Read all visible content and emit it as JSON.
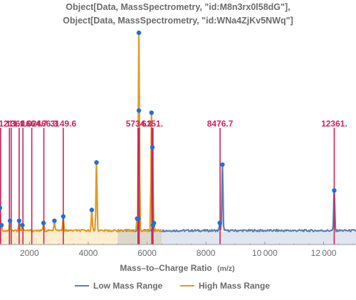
{
  "chart_data": {
    "type": "line",
    "title_lines": [
      "Object[Data, MassSpectrometry, \"id:M8n3rx0l58dG\"],",
      "Object[Data, MassSpectrometry, \"id:WNa4ZjKv5NWq\"]"
    ],
    "xlabel": "Mass–to–Charge Ratio",
    "xlabel_unit": "(m/z)",
    "ylabel": "",
    "xlim": [
      1000,
      13100
    ],
    "ylim": [
      0,
      100
    ],
    "x_ticks": [
      2000,
      4000,
      6000,
      8000,
      10000,
      12000
    ],
    "x_tick_labels": [
      "2000",
      "4000",
      "6000",
      "8000",
      "10 000",
      "12 000"
    ],
    "baseline": 6,
    "legend_position": "bottom",
    "shaded_ranges": [
      {
        "from": 1000,
        "to": 5000,
        "color": "#fdebc8",
        "opacity": 0.85
      },
      {
        "from": 5000,
        "to": 6500,
        "color": "#d9d3c4",
        "opacity": 0.9
      },
      {
        "from": 6500,
        "to": 13100,
        "color": "#dde3ee",
        "opacity": 0.9
      }
    ],
    "series": [
      {
        "name": "Low Mass Range",
        "color": "#5c7fb4",
        "x_range": [
          5000,
          13100
        ],
        "peaks": [
          {
            "x": 5700,
            "y": 12
          },
          {
            "x": 6200,
            "y": 9
          },
          {
            "x": 8470,
            "y": 10
          },
          {
            "x": 8560,
            "y": 37
          },
          {
            "x": 12360,
            "y": 25
          }
        ]
      },
      {
        "name": "High Mass Range",
        "color": "#e09b26",
        "x_range": [
          1000,
          6500
        ],
        "peaks": [
          {
            "x": 1000,
            "y": 17
          },
          {
            "x": 1050,
            "y": 9
          },
          {
            "x": 1340,
            "y": 11
          },
          {
            "x": 1650,
            "y": 11
          },
          {
            "x": 1760,
            "y": 9
          },
          {
            "x": 2480,
            "y": 10
          },
          {
            "x": 2850,
            "y": 11
          },
          {
            "x": 3150,
            "y": 13
          },
          {
            "x": 4120,
            "y": 16
          },
          {
            "x": 4280,
            "y": 38
          },
          {
            "x": 5660,
            "y": 12
          },
          {
            "x": 5720,
            "y": 98
          },
          {
            "x": 5720,
            "y": 62
          },
          {
            "x": 6150,
            "y": 61
          },
          {
            "x": 6180,
            "y": 45
          },
          {
            "x": 6230,
            "y": 10
          }
        ]
      }
    ],
    "annotations": [
      {
        "x": 1020,
        "label": ""
      },
      {
        "x": 1320,
        "label": ""
      },
      {
        "x": 1380,
        "label": ""
      },
      {
        "x": 1650,
        "label": ""
      },
      {
        "x": 1780,
        "label": ""
      },
      {
        "x": 2080,
        "label": ""
      },
      {
        "x": 2490,
        "label": ""
      },
      {
        "x": 3150,
        "label": ""
      },
      {
        "x": 5690,
        "label": ""
      },
      {
        "x": 5730,
        "label": ""
      },
      {
        "x": 6160,
        "label": ""
      },
      {
        "x": 6200,
        "label": ""
      },
      {
        "x": 8480,
        "label": "8476.7"
      },
      {
        "x": 12360,
        "label": "12361."
      }
    ],
    "annotation_text_overlaps": [
      {
        "text": "12​11.1",
        "x": 960,
        "anchor": "start"
      },
      {
        "text": "1360.0",
        "x": 1200,
        "anchor": "start"
      },
      {
        "text": "1664.7",
        "x": 1720,
        "anchor": "start"
      },
      {
        "text": "2466.3",
        "x": 2080,
        "anchor": "start"
      },
      {
        "text": "3149.6",
        "x": 3150,
        "anchor": "middle"
      },
      {
        "text": "5734.3",
        "x": 5720,
        "anchor": "middle"
      },
      {
        "text": "6151.",
        "x": 6180,
        "anchor": "middle"
      }
    ],
    "annotation_color": "#c8245a",
    "marker_color": "#1f6fe0"
  }
}
